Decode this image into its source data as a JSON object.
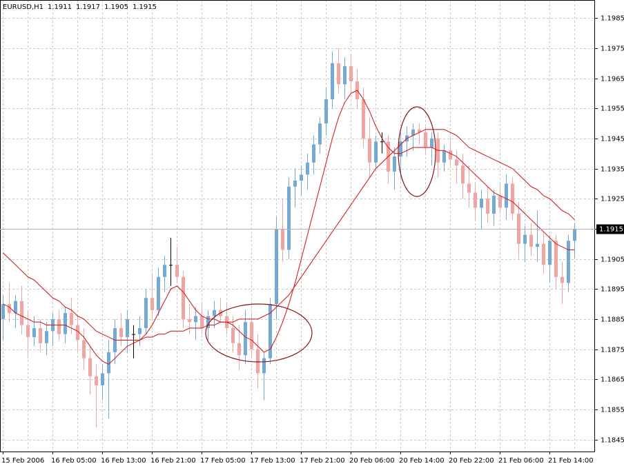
{
  "chart_data": {
    "type": "candlestick",
    "title": "EURUSD,H1",
    "categories": [
      "15 Feb 2006",
      null,
      null,
      null,
      null,
      null,
      null,
      null,
      "16 Feb 05:00",
      null,
      null,
      null,
      null,
      null,
      null,
      null,
      "16 Feb 13:00",
      null,
      null,
      null,
      null,
      null,
      null,
      null,
      "16 Feb 21:00",
      null,
      null,
      null,
      null,
      null,
      null,
      null,
      "17 Feb 05:00",
      null,
      null,
      null,
      null,
      null,
      null,
      null,
      "17 Feb 13:00",
      null,
      null,
      null,
      null,
      null,
      null,
      null,
      "17 Feb 21:00",
      null,
      null,
      null,
      null,
      null,
      null,
      null,
      "20 Feb 06:00",
      null,
      null,
      null,
      null,
      null,
      null,
      null,
      "20 Feb 14:00",
      null,
      null,
      null,
      null,
      null,
      null,
      null,
      "20 Feb 22:00",
      null,
      null,
      null,
      null,
      null,
      null,
      null,
      "21 Feb 06:00",
      null,
      null,
      null,
      null,
      null,
      null,
      null,
      "21 Feb 14:00",
      null,
      null,
      null,
      null
    ],
    "open": [
      1.1885,
      1.189,
      1.1887,
      1.1891,
      1.1883,
      1.1879,
      1.1882,
      1.1877,
      1.1881,
      1.1885,
      1.188,
      1.1887,
      1.1883,
      1.1878,
      1.1872,
      1.1866,
      1.1863,
      1.1867,
      1.1874,
      1.1882,
      1.1879,
      1.188,
      1.188,
      1.1882,
      1.1892,
      1.1888,
      1.1899,
      1.1903,
      1.1903,
      1.1899,
      1.1885,
      1.1884,
      1.1886,
      1.1882,
      1.1886,
      1.1888,
      1.1886,
      1.1882,
      1.1877,
      1.1873,
      1.1884,
      1.1875,
      1.1867,
      1.1872,
      1.189,
      1.1915,
      1.1908,
      1.1929,
      1.1931,
      1.1933,
      1.1937,
      1.1943,
      1.195,
      1.1958,
      1.197,
      1.1963,
      1.1969,
      1.1964,
      1.1958,
      1.1945,
      1.1937,
      1.1944,
      1.1944,
      1.1934,
      1.1939,
      1.1944,
      1.1946,
      1.1948,
      1.1947,
      1.1942,
      1.1945,
      1.1937,
      1.1941,
      1.1938,
      1.1936,
      1.193,
      1.1927,
      1.1922,
      1.1925,
      1.192,
      1.1926,
      1.1922,
      1.193,
      1.192,
      1.191,
      1.1913,
      1.1909,
      1.191,
      1.1903,
      1.1911,
      1.1899,
      1.1897,
      1.1911
    ],
    "high": [
      1.1893,
      1.1897,
      1.1893,
      1.1896,
      1.1888,
      1.1886,
      1.1885,
      1.1884,
      1.1887,
      1.1888,
      1.1889,
      1.1892,
      1.1886,
      1.1882,
      1.1876,
      1.187,
      1.187,
      1.1878,
      1.1885,
      1.1887,
      1.1888,
      1.1883,
      1.1886,
      1.1895,
      1.19,
      1.1902,
      1.1906,
      1.1912,
      1.1909,
      1.1901,
      1.189,
      1.1889,
      1.189,
      1.1888,
      1.1891,
      1.1892,
      1.189,
      1.1886,
      1.1883,
      1.1888,
      1.1887,
      1.188,
      1.1874,
      1.1892,
      1.1919,
      1.1925,
      1.1932,
      1.1935,
      1.1936,
      1.194,
      1.1946,
      1.1952,
      1.1962,
      1.1974,
      1.1975,
      1.1972,
      1.1973,
      1.1968,
      1.1962,
      1.1952,
      1.1946,
      1.1947,
      1.1946,
      1.1942,
      1.1947,
      1.1949,
      1.195,
      1.195,
      1.1949,
      1.1947,
      1.1947,
      1.1943,
      1.1945,
      1.1941,
      1.194,
      1.1936,
      1.193,
      1.1928,
      1.1929,
      1.1928,
      1.193,
      1.1933,
      1.1932,
      1.1924,
      1.1916,
      1.1917,
      1.1921,
      1.1914,
      1.1913,
      1.1913,
      1.1904,
      1.1913,
      1.1917
    ],
    "low": [
      1.1878,
      1.1884,
      1.1882,
      1.188,
      1.1872,
      1.1876,
      1.1874,
      1.1873,
      1.1876,
      1.1878,
      1.1877,
      1.188,
      1.1874,
      1.1868,
      1.186,
      1.1849,
      1.1858,
      1.1852,
      1.187,
      1.1876,
      1.1874,
      1.1872,
      1.1876,
      1.188,
      1.1885,
      1.1886,
      1.1894,
      1.1896,
      1.1897,
      1.1882,
      1.188,
      1.1878,
      1.188,
      1.1878,
      1.1882,
      1.1884,
      1.188,
      1.1874,
      1.1868,
      1.187,
      1.1872,
      1.1862,
      1.1858,
      1.187,
      1.1885,
      1.1904,
      1.1905,
      1.1922,
      1.1926,
      1.1928,
      1.1933,
      1.194,
      1.1946,
      1.1955,
      1.196,
      1.1958,
      1.196,
      1.1955,
      1.1942,
      1.1932,
      1.1935,
      1.194,
      1.193,
      1.1928,
      1.1932,
      1.1939,
      1.1941,
      1.1943,
      1.194,
      1.1936,
      1.1932,
      1.1934,
      1.1936,
      1.193,
      1.1925,
      1.1922,
      1.1918,
      1.1915,
      1.1917,
      1.1916,
      1.192,
      1.1918,
      1.1918,
      1.1905,
      1.1904,
      1.1906,
      1.1904,
      1.19,
      1.1897,
      1.1895,
      1.189,
      1.1894,
      1.1905
    ],
    "close": [
      1.189,
      1.1887,
      1.1891,
      1.1883,
      1.1879,
      1.1882,
      1.1877,
      1.1881,
      1.1885,
      1.188,
      1.1887,
      1.1883,
      1.1878,
      1.1872,
      1.1866,
      1.1863,
      1.1867,
      1.1874,
      1.1882,
      1.1879,
      1.1885,
      1.188,
      1.1882,
      1.1892,
      1.1888,
      1.1899,
      1.1903,
      1.1903,
      1.1899,
      1.1885,
      1.1884,
      1.1886,
      1.1882,
      1.1886,
      1.1888,
      1.1886,
      1.1882,
      1.1877,
      1.1873,
      1.1884,
      1.1875,
      1.1867,
      1.1872,
      1.189,
      1.1915,
      1.1908,
      1.1929,
      1.1931,
      1.1933,
      1.1937,
      1.1943,
      1.195,
      1.1958,
      1.197,
      1.1963,
      1.1969,
      1.1964,
      1.1958,
      1.1945,
      1.1937,
      1.1944,
      1.1944,
      1.1934,
      1.1939,
      1.1944,
      1.1946,
      1.1948,
      1.1947,
      1.1942,
      1.1945,
      1.1937,
      1.1941,
      1.1938,
      1.1936,
      1.193,
      1.1927,
      1.1922,
      1.1925,
      1.192,
      1.1926,
      1.1922,
      1.193,
      1.192,
      1.191,
      1.1913,
      1.1909,
      1.191,
      1.1903,
      1.1911,
      1.1899,
      1.1897,
      1.1911,
      1.1915
    ],
    "up_color": "#74a9d4",
    "down_color": "#f0a4a4",
    "doji_color": "#000000",
    "series": [
      {
        "color": "#d42020",
        "values": [
          1.189,
          1.1889,
          1.1887,
          1.1886,
          1.1885,
          1.1884,
          1.1884,
          1.1883,
          1.1883,
          1.1883,
          1.1883,
          1.1882,
          1.1881,
          1.1879,
          1.1876,
          1.1873,
          1.1871,
          1.187,
          1.1872,
          1.1874,
          1.1876,
          1.1877,
          1.1878,
          1.188,
          1.1883,
          1.1887,
          1.1891,
          1.1895,
          1.1896,
          1.1894,
          1.1891,
          1.1888,
          1.1886,
          1.1885,
          1.1885,
          1.1884,
          1.1884,
          1.1883,
          1.1881,
          1.1879,
          1.1878,
          1.1876,
          1.1874,
          1.1875,
          1.1879,
          1.1884,
          1.189,
          1.1897,
          1.1905,
          1.1913,
          1.1921,
          1.1929,
          1.1937,
          1.1945,
          1.1952,
          1.1957,
          1.196,
          1.1961,
          1.1958,
          1.1954,
          1.1949,
          1.1945,
          1.1942,
          1.194,
          1.194,
          1.1941,
          1.1942,
          1.1942,
          1.1942,
          1.1942,
          1.1941,
          1.1941,
          1.194,
          1.1939,
          1.1937,
          1.1935,
          1.1933,
          1.1931,
          1.1929,
          1.1927,
          1.1926,
          1.1925,
          1.1924,
          1.1922,
          1.192,
          1.1918,
          1.1916,
          1.1914,
          1.1912,
          1.191,
          1.1909,
          1.1908,
          1.1908
        ]
      },
      {
        "color": "#d42020",
        "values": [
          1.1907,
          1.1905,
          1.1903,
          1.1901,
          1.1899,
          1.1898,
          1.1896,
          1.1894,
          1.1892,
          1.1891,
          1.1889,
          1.1888,
          1.1886,
          1.1885,
          1.1883,
          1.1881,
          1.188,
          1.1879,
          1.1878,
          1.1878,
          1.1878,
          1.1878,
          1.1878,
          1.1879,
          1.1879,
          1.188,
          1.188,
          1.1881,
          1.1881,
          1.1881,
          1.1882,
          1.1882,
          1.1882,
          1.1883,
          1.1883,
          1.1884,
          1.1884,
          1.1884,
          1.1885,
          1.1885,
          1.1885,
          1.1885,
          1.1886,
          1.1887,
          1.1889,
          1.1891,
          1.1893,
          1.1896,
          1.1899,
          1.1902,
          1.1905,
          1.1908,
          1.1911,
          1.1914,
          1.1917,
          1.192,
          1.1923,
          1.1926,
          1.1929,
          1.1932,
          1.1935,
          1.1937,
          1.1939,
          1.1941,
          1.1943,
          1.1945,
          1.1946,
          1.1947,
          1.1948,
          1.1948,
          1.1948,
          1.1948,
          1.1947,
          1.1946,
          1.1944,
          1.1942,
          1.1941,
          1.194,
          1.1939,
          1.1938,
          1.1937,
          1.1936,
          1.1935,
          1.1933,
          1.1931,
          1.1929,
          1.1928,
          1.1926,
          1.1925,
          1.1923,
          1.1921,
          1.192,
          1.1918
        ]
      }
    ],
    "ylim": [
      1.1841,
      1.1991
    ],
    "yticks": [
      1.1845,
      1.1855,
      1.1865,
      1.1875,
      1.1885,
      1.1895,
      1.1905,
      1.1915,
      1.1925,
      1.1935,
      1.1945,
      1.1955,
      1.1965,
      1.1975,
      1.1985
    ],
    "grid": true
  }
}
